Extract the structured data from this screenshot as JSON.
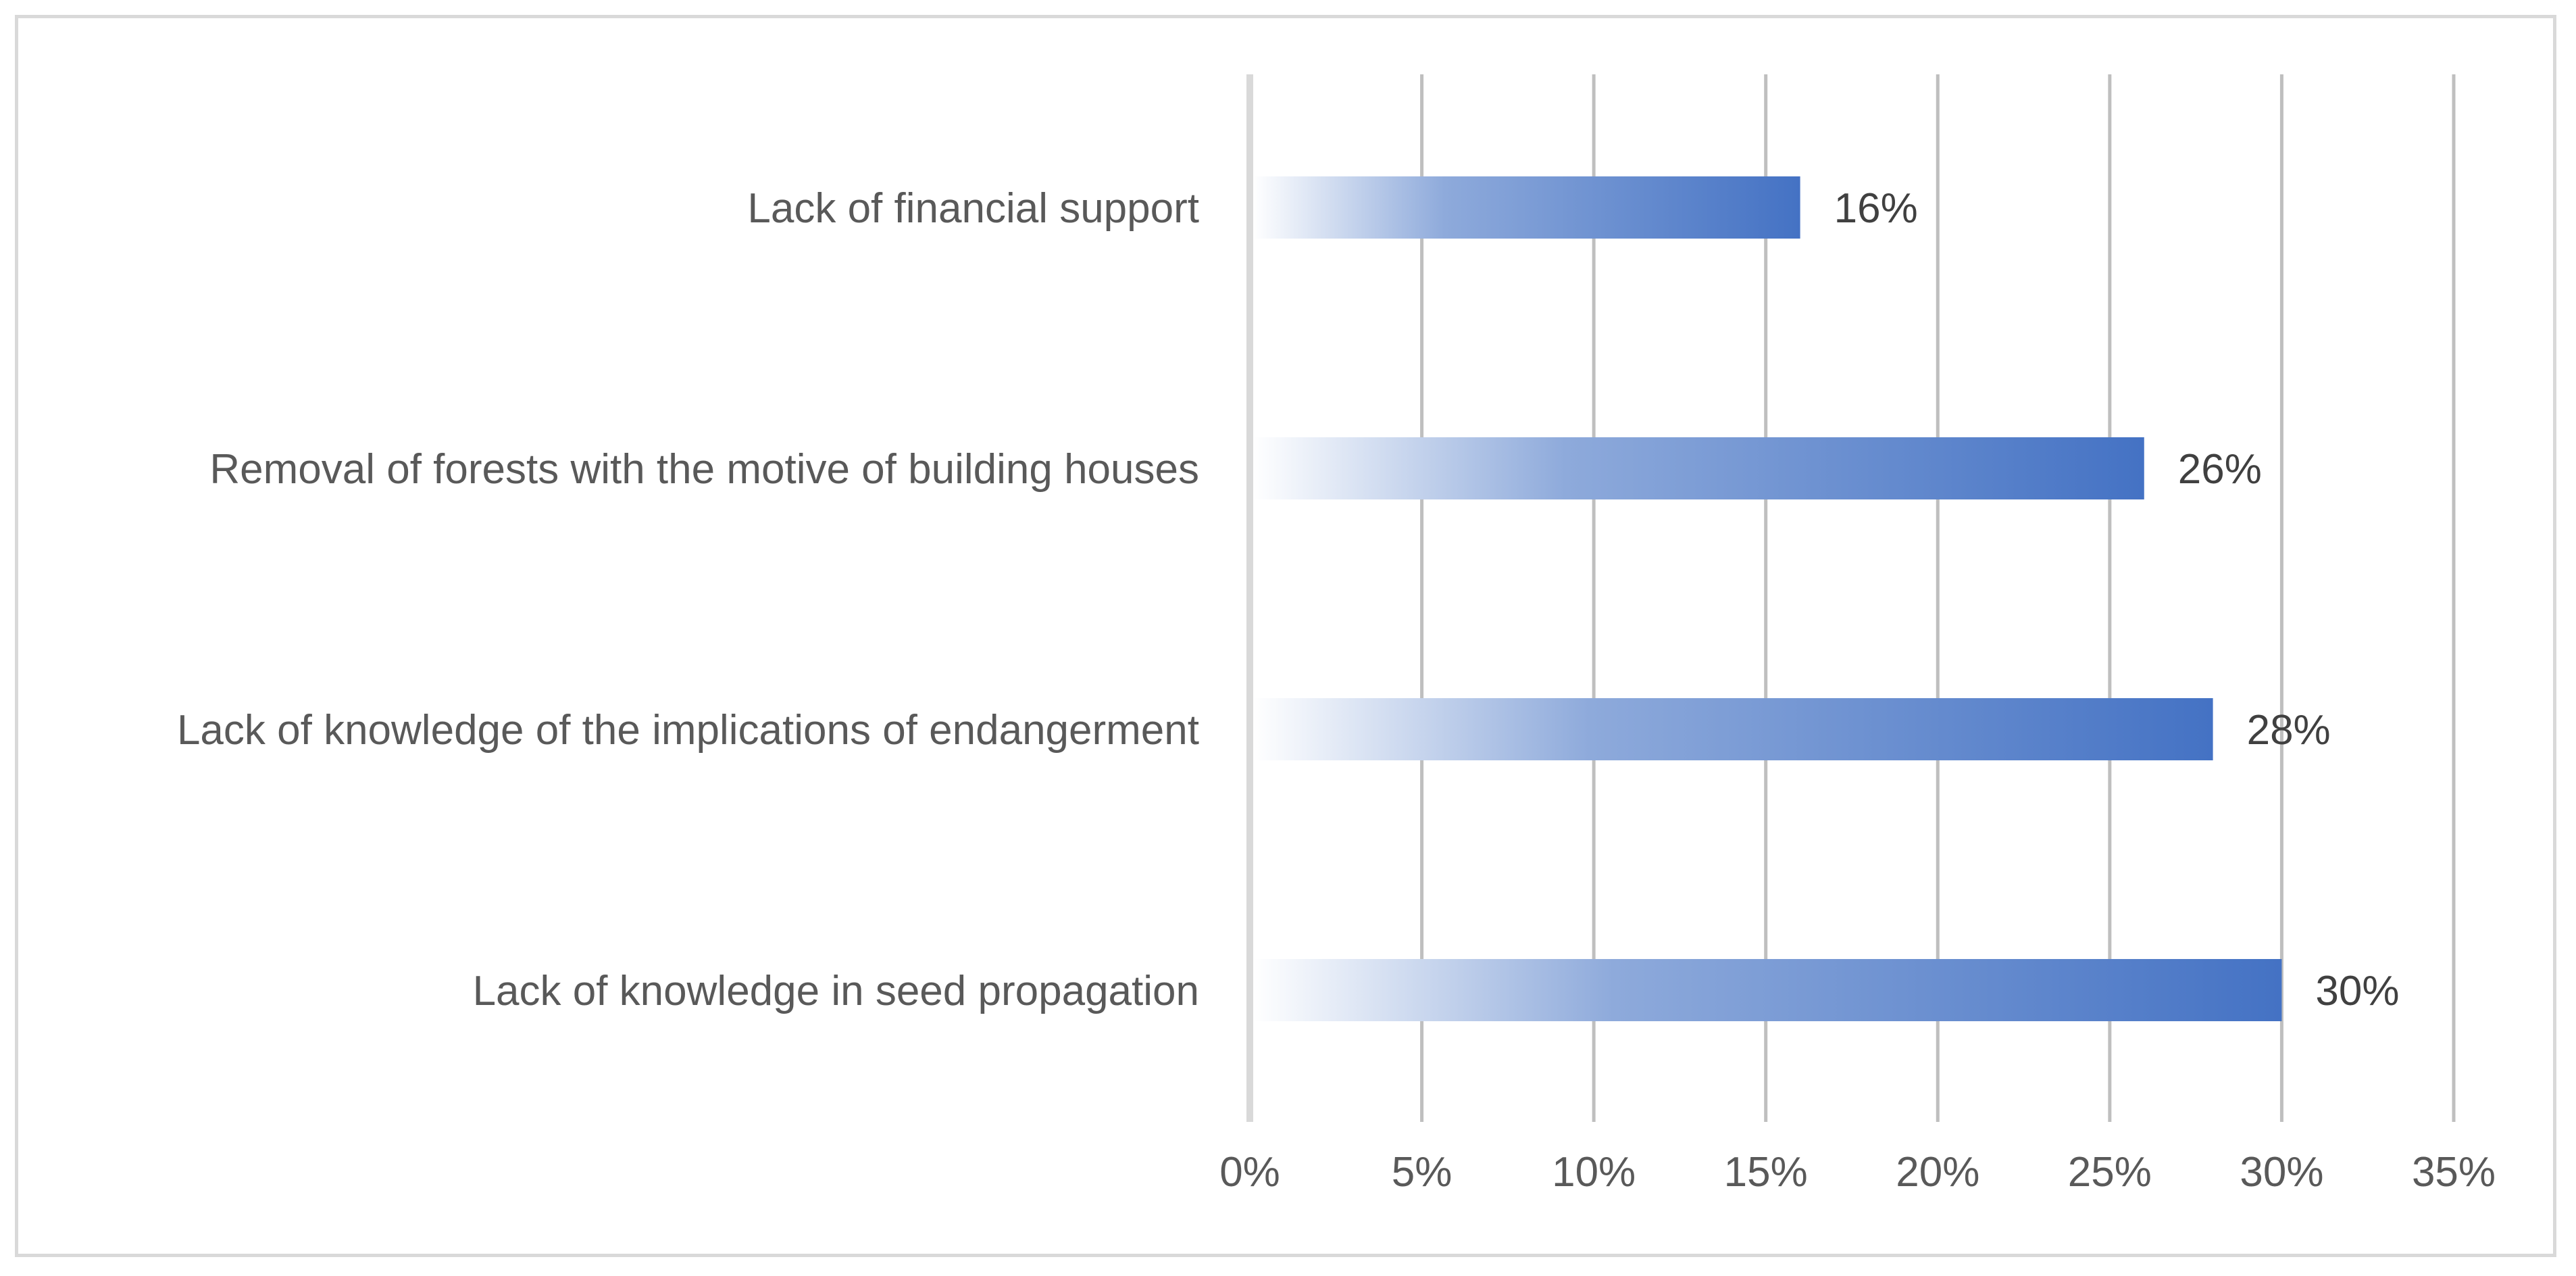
{
  "chart_data": {
    "type": "bar",
    "orientation": "horizontal",
    "title": "",
    "xlabel": "",
    "ylabel": "",
    "categories": [
      "Lack of financial support",
      "Removal of forests with the motive of building houses",
      "Lack of knowledge of the implications of endangerment",
      "Lack of knowledge in seed propagation"
    ],
    "values": [
      16,
      26,
      28,
      30
    ],
    "value_labels": [
      "16%",
      "26%",
      "28%",
      "30%"
    ],
    "xlim": [
      0,
      35
    ],
    "xticks": [
      0,
      5,
      10,
      15,
      20,
      25,
      30,
      35
    ],
    "xtick_labels": [
      "0%",
      "5%",
      "10%",
      "15%",
      "20%",
      "25%",
      "30%",
      "35%"
    ],
    "grid": "vertical",
    "legend": "none",
    "colors": {
      "bar_start": "#ffffff",
      "bar_mid": "#8eaadb",
      "bar_end": "#4472c4",
      "gridline": "#bfbfbf",
      "axis": "#d9d9d9",
      "text": "#595959",
      "value_text": "#404040"
    }
  }
}
